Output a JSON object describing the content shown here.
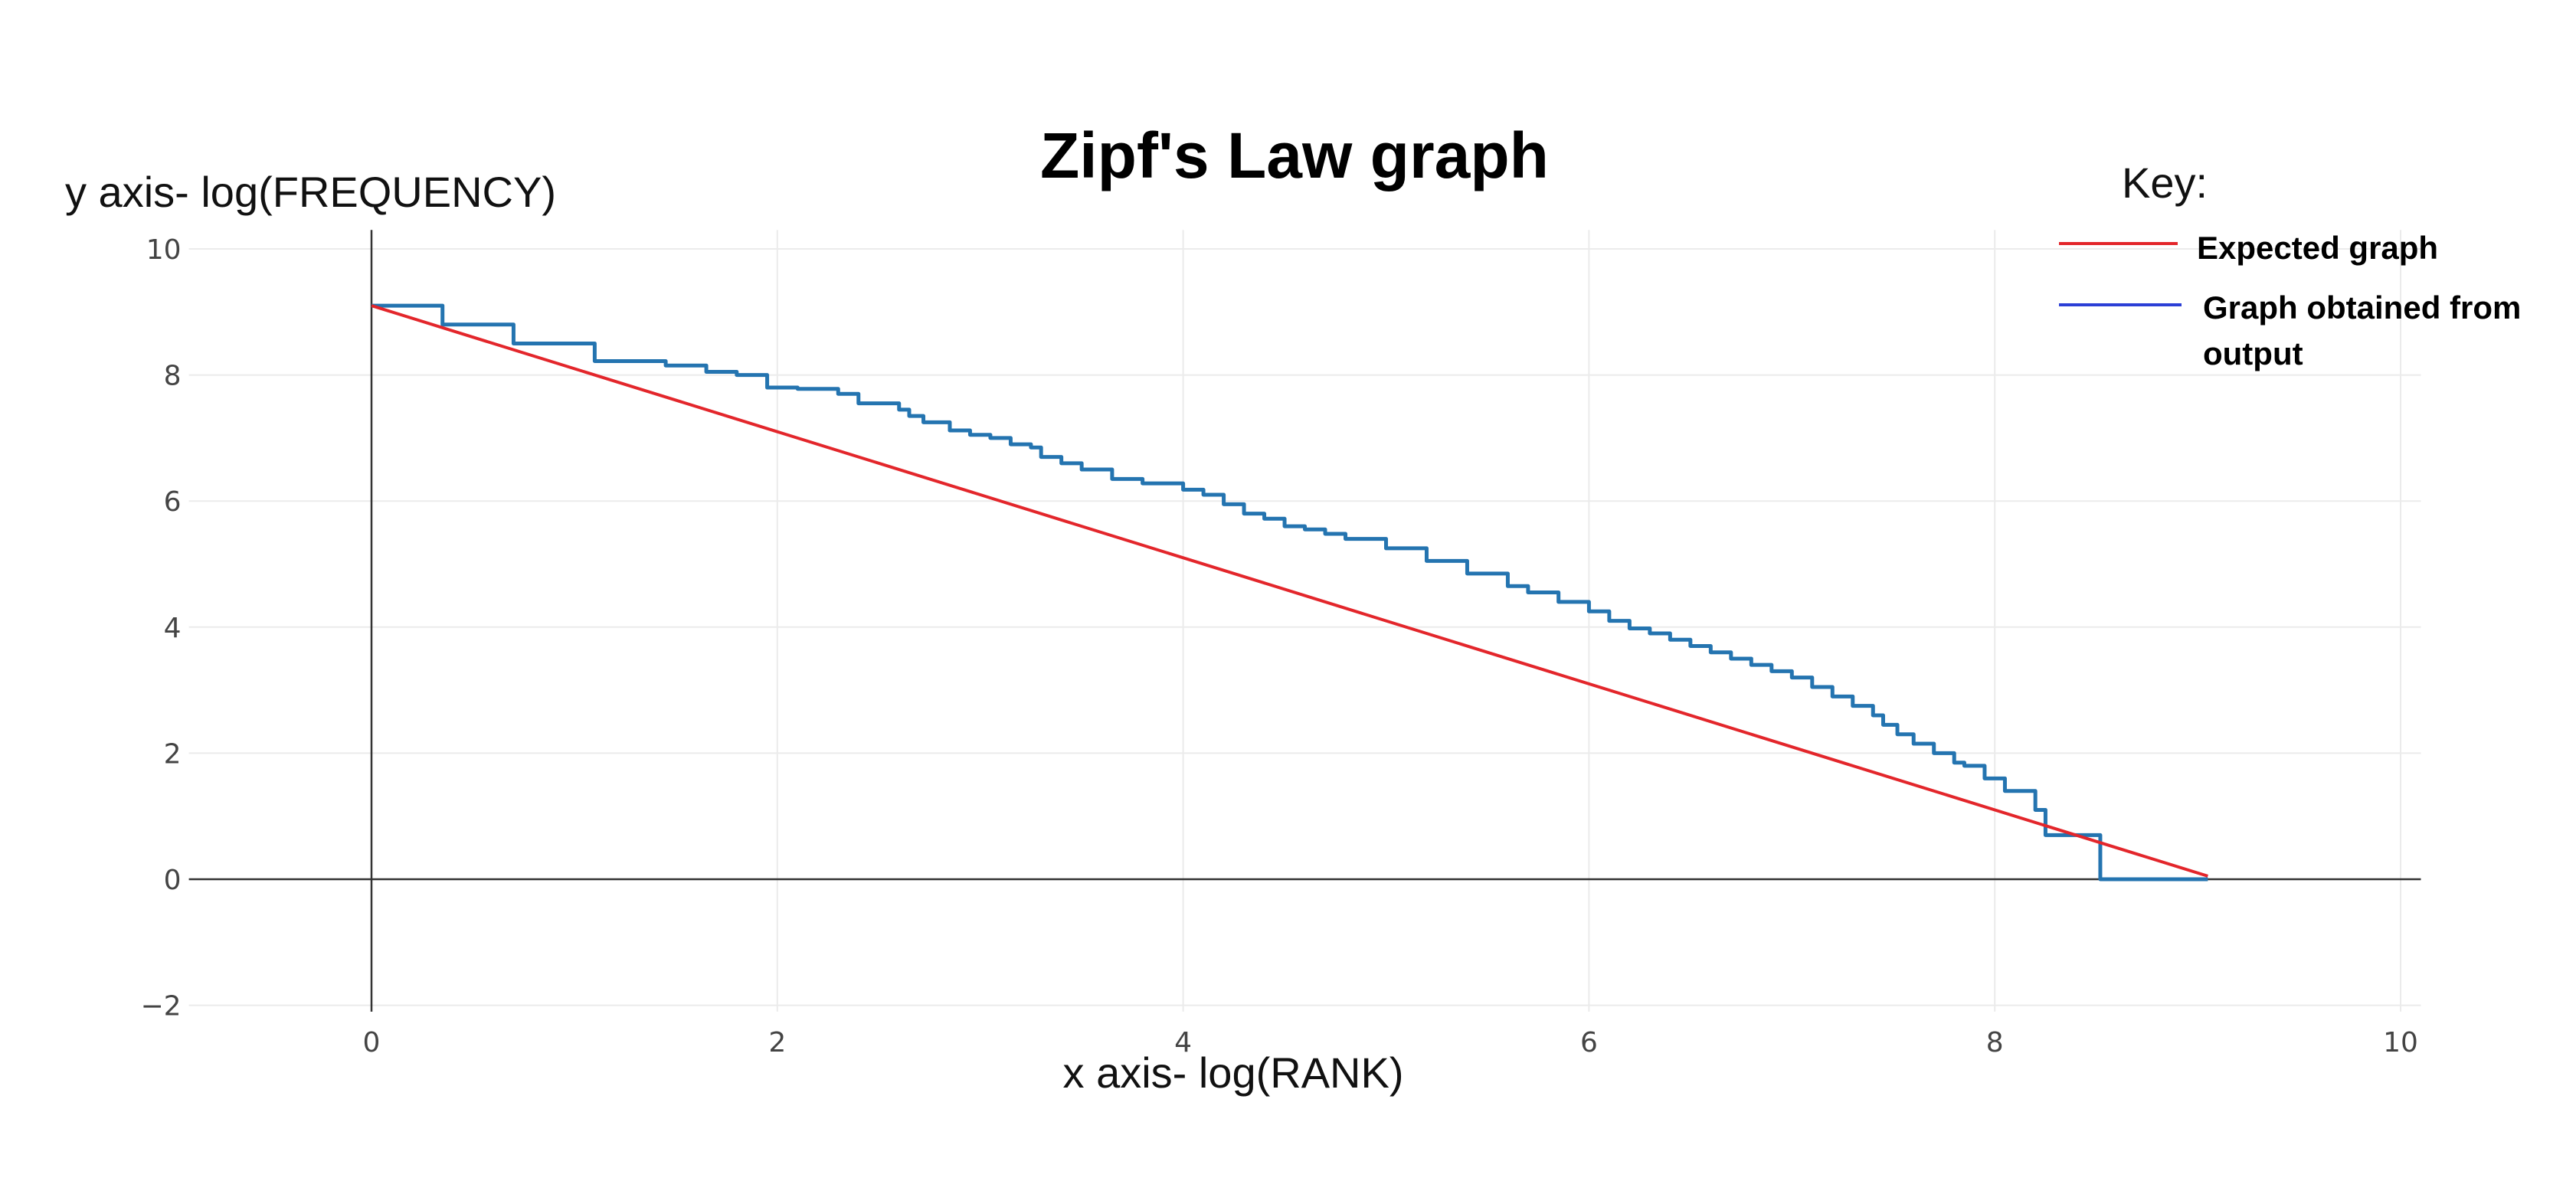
{
  "chart_data": {
    "type": "line",
    "title": "Zipf's Law graph",
    "xlabel": "x axis- log(RANK)",
    "ylabel": "y axis- log(FREQUENCY)",
    "xlim": [
      -0.9,
      10.1
    ],
    "ylim": [
      -2.1,
      10.3
    ],
    "xticks": [
      0,
      2,
      4,
      6,
      8,
      10
    ],
    "yticks": [
      -2,
      0,
      2,
      4,
      6,
      8,
      10
    ],
    "xtick_labels": [
      "0",
      "2",
      "4",
      "6",
      "8",
      "10"
    ],
    "ytick_labels": [
      "−2",
      "0",
      "2",
      "4",
      "6",
      "8",
      "10"
    ],
    "grid": true,
    "legend": {
      "title": "Key:",
      "placement": "top-right",
      "entries": [
        {
          "label": "Expected graph",
          "color": "#e3262b"
        },
        {
          "label_lines": [
            "Graph obtained from",
            "output"
          ],
          "color": "#2b3fd6"
        }
      ]
    },
    "series": [
      {
        "color": "#2474b0",
        "shape": "hv",
        "points": [
          [
            0,
            9.1
          ],
          [
            0.35,
            8.8
          ],
          [
            0.7,
            8.5
          ],
          [
            1.1,
            8.22
          ],
          [
            1.45,
            8.15
          ],
          [
            1.65,
            8.05
          ],
          [
            1.8,
            8.0
          ],
          [
            1.95,
            7.8
          ],
          [
            2.1,
            7.78
          ],
          [
            2.3,
            7.7
          ],
          [
            2.4,
            7.55
          ],
          [
            2.6,
            7.45
          ],
          [
            2.65,
            7.35
          ],
          [
            2.72,
            7.25
          ],
          [
            2.85,
            7.12
          ],
          [
            2.95,
            7.05
          ],
          [
            3.05,
            7.0
          ],
          [
            3.15,
            6.9
          ],
          [
            3.25,
            6.85
          ],
          [
            3.3,
            6.7
          ],
          [
            3.4,
            6.6
          ],
          [
            3.5,
            6.5
          ],
          [
            3.65,
            6.35
          ],
          [
            3.8,
            6.28
          ],
          [
            4.0,
            6.18
          ],
          [
            4.1,
            6.1
          ],
          [
            4.2,
            5.95
          ],
          [
            4.3,
            5.8
          ],
          [
            4.4,
            5.72
          ],
          [
            4.5,
            5.6
          ],
          [
            4.6,
            5.55
          ],
          [
            4.7,
            5.48
          ],
          [
            4.8,
            5.4
          ],
          [
            5.0,
            5.25
          ],
          [
            5.2,
            5.05
          ],
          [
            5.4,
            4.85
          ],
          [
            5.6,
            4.65
          ],
          [
            5.7,
            4.55
          ],
          [
            5.85,
            4.4
          ],
          [
            6.0,
            4.25
          ],
          [
            6.1,
            4.1
          ],
          [
            6.2,
            3.98
          ],
          [
            6.3,
            3.9
          ],
          [
            6.4,
            3.8
          ],
          [
            6.5,
            3.7
          ],
          [
            6.6,
            3.6
          ],
          [
            6.7,
            3.5
          ],
          [
            6.8,
            3.4
          ],
          [
            6.9,
            3.3
          ],
          [
            7.0,
            3.2
          ],
          [
            7.1,
            3.05
          ],
          [
            7.2,
            2.9
          ],
          [
            7.3,
            2.75
          ],
          [
            7.4,
            2.6
          ],
          [
            7.45,
            2.45
          ],
          [
            7.52,
            2.3
          ],
          [
            7.6,
            2.15
          ],
          [
            7.7,
            2.0
          ],
          [
            7.8,
            1.85
          ],
          [
            7.85,
            1.8
          ],
          [
            7.95,
            1.6
          ],
          [
            8.05,
            1.4
          ],
          [
            8.2,
            1.1
          ],
          [
            8.25,
            0.7
          ],
          [
            8.52,
            0.7
          ],
          [
            8.52,
            0
          ],
          [
            9.05,
            0
          ]
        ]
      },
      {
        "color": "#e3262b",
        "shape": "linear",
        "points": [
          [
            0,
            9.1
          ],
          [
            9.05,
            0.05
          ]
        ]
      }
    ]
  }
}
